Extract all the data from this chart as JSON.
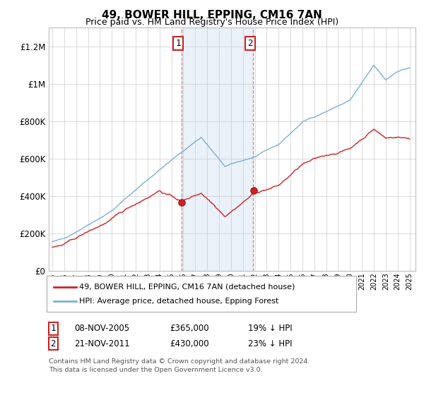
{
  "title": "49, BOWER HILL, EPPING, CM16 7AN",
  "subtitle": "Price paid vs. HM Land Registry's House Price Index (HPI)",
  "sale1": {
    "date": "08-NOV-2005",
    "price": 365000,
    "label": "1",
    "hpi_diff": "19% ↓ HPI",
    "year": 2005.85
  },
  "sale2": {
    "date": "21-NOV-2011",
    "price": 430000,
    "label": "2",
    "hpi_diff": "23% ↓ HPI",
    "year": 2011.88
  },
  "legend_line1": "49, BOWER HILL, EPPING, CM16 7AN (detached house)",
  "legend_line2": "HPI: Average price, detached house, Epping Forest",
  "footnote1": "Contains HM Land Registry data © Crown copyright and database right 2024.",
  "footnote2": "This data is licensed under the Open Government Licence v3.0.",
  "ylim": [
    0,
    1300000
  ],
  "yticks": [
    0,
    200000,
    400000,
    600000,
    800000,
    1000000,
    1200000
  ],
  "ytick_labels": [
    "£0",
    "£200K",
    "£400K",
    "£600K",
    "£800K",
    "£1M",
    "£1.2M"
  ],
  "hpi_color": "#7bafd4",
  "price_color": "#cc2222",
  "shade_color": "#dce9f5",
  "shade_alpha": 0.6,
  "background_color": "#ffffff",
  "xmin": 1995,
  "xmax": 2025
}
